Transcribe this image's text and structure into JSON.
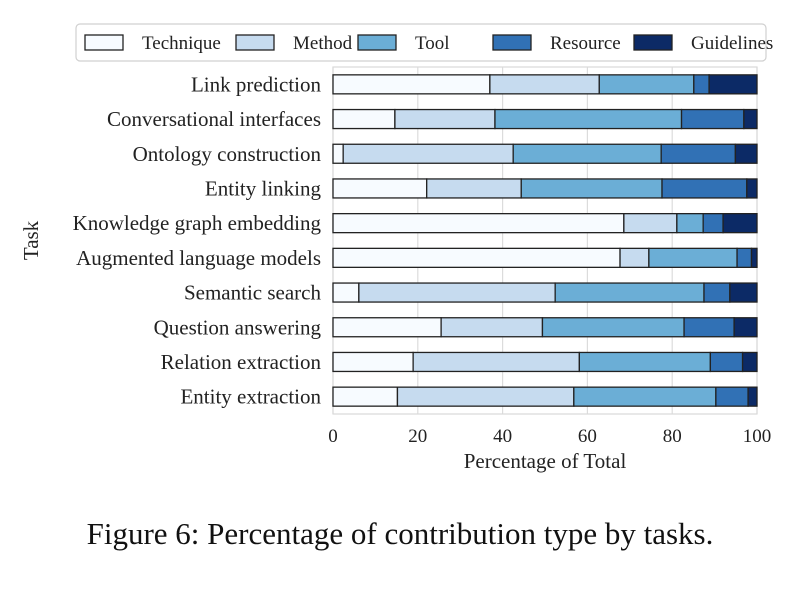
{
  "chart_data": {
    "type": "bar",
    "orientation": "horizontal",
    "stacked": true,
    "title": "",
    "xlabel": "Percentage of Total",
    "ylabel": "Task",
    "xlim": [
      0,
      100
    ],
    "xticks": [
      0,
      20,
      40,
      60,
      80,
      100
    ],
    "xtick_labels": [
      "0",
      "20",
      "40",
      "60",
      "80",
      "100"
    ],
    "grid": "vertical",
    "legend_position": "top",
    "categories": [
      "Link prediction",
      "Conversational interfaces",
      "Ontology construction",
      "Entity linking",
      "Knowledge graph embedding",
      "Augmented language models",
      "Semantic search",
      "Question answering",
      "Relation extraction",
      "Entity extraction"
    ],
    "series": [
      {
        "name": "Technique",
        "color": "#f7fbff",
        "values": [
          37.0,
          14.6,
          2.4,
          22.1,
          68.6,
          67.7,
          6.1,
          25.5,
          18.9,
          15.2
        ]
      },
      {
        "name": "Method",
        "color": "#c6dbef",
        "values": [
          25.8,
          23.6,
          40.1,
          22.3,
          12.5,
          6.8,
          46.3,
          23.9,
          39.2,
          41.6
        ]
      },
      {
        "name": "Tool",
        "color": "#6baed6",
        "values": [
          22.3,
          44.0,
          34.9,
          33.2,
          6.2,
          20.8,
          35.1,
          33.4,
          30.9,
          33.5
        ]
      },
      {
        "name": "Resource",
        "color": "#3171b5",
        "values": [
          3.6,
          14.7,
          17.5,
          20.0,
          4.7,
          3.4,
          6.1,
          11.8,
          7.6,
          7.6
        ]
      },
      {
        "name": "Guidelines",
        "color": "#0c2a66",
        "values": [
          11.3,
          3.1,
          5.1,
          2.4,
          8.0,
          1.3,
          6.4,
          5.4,
          3.4,
          2.1
        ]
      }
    ]
  },
  "caption": "Figure 6: Percentage of contribution type by tasks."
}
